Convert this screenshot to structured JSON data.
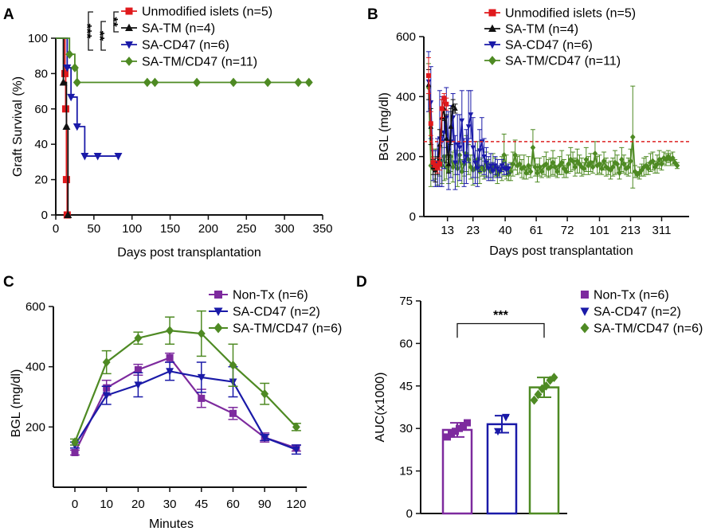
{
  "colors": {
    "red": "#e0191c",
    "black": "#111111",
    "blue": "#1a1aa8",
    "green": "#4e8a23",
    "purple": "#7d2a9e",
    "threshold": "#dd2222"
  },
  "chart_data": [
    {
      "panel": "A",
      "type": "line",
      "step": true,
      "ylabel": "Graft Survival (%)",
      "xlabel": "Days post transplantation",
      "xlim": [
        0,
        350
      ],
      "ylim": [
        0,
        100
      ],
      "xticks": [
        "0",
        "50",
        "100",
        "150",
        "200",
        "250",
        "300",
        "350"
      ],
      "yticks": [
        "0",
        "20",
        "40",
        "60",
        "80",
        "100"
      ],
      "series": [
        {
          "name": "Unmodified islets (n=5)",
          "color": "#e0191c",
          "marker": "square",
          "x": [
            0,
            12,
            13,
            14,
            15
          ],
          "y": [
            100,
            80,
            60,
            20,
            0
          ],
          "censored_x": [],
          "censored_y": []
        },
        {
          "name": "SA-TM (n=4)",
          "color": "#111111",
          "marker": "triangle-up",
          "x": [
            0,
            10,
            14,
            16
          ],
          "y": [
            100,
            75,
            50,
            0
          ],
          "censored_x": [],
          "censored_y": []
        },
        {
          "name": "SA-CD47 (n=6)",
          "color": "#1a1aa8",
          "marker": "triangle-down",
          "x": [
            0,
            15,
            20,
            28,
            38
          ],
          "y": [
            100,
            83.3,
            66.7,
            50,
            33.3
          ],
          "censored_x": [
            55,
            82
          ],
          "censored_y": [
            33.3,
            33.3
          ]
        },
        {
          "name": "SA-TM/CD47 (n=11)",
          "color": "#4e8a23",
          "marker": "diamond",
          "x": [
            0,
            18,
            25,
            28
          ],
          "y": [
            100,
            90.9,
            83.3,
            75
          ],
          "censored_x": [
            120,
            130,
            185,
            233,
            278,
            318,
            332
          ],
          "censored_y": [
            75,
            75,
            75,
            75,
            75,
            75,
            75
          ]
        }
      ],
      "significance": [
        "***",
        "**",
        "**"
      ]
    },
    {
      "panel": "B",
      "type": "line",
      "ylabel": "BGL (mg/dl)",
      "xlabel": "Days post transplantation",
      "ylim": [
        0,
        600
      ],
      "yticks": [
        "0",
        "200",
        "400",
        "600"
      ],
      "xticks": [
        "13",
        "23",
        "40",
        "61",
        "72",
        "101",
        "213",
        "311"
      ],
      "threshold": 250,
      "series": [
        {
          "name": "Unmodified islets (n=5)",
          "color": "#e0191c",
          "marker": "square",
          "x": [
            0,
            1,
            2,
            3,
            4,
            5,
            6,
            7,
            8
          ],
          "y": [
            470,
            310,
            180,
            170,
            165,
            175,
            360,
            395,
            375
          ],
          "err": [
            60,
            40,
            15,
            15,
            20,
            20,
            30,
            15,
            20
          ]
        },
        {
          "name": "SA-TM (n=4)",
          "color": "#111111",
          "marker": "triangle-up",
          "x": [
            0,
            1,
            2,
            3,
            4,
            5,
            6,
            7,
            8,
            9,
            10,
            11,
            12
          ],
          "y": [
            440,
            300,
            165,
            155,
            170,
            240,
            330,
            360,
            260,
            175,
            300,
            370,
            360
          ],
          "err": [
            50,
            60,
            25,
            40,
            30,
            50,
            60,
            40,
            80,
            30,
            60,
            20,
            15
          ]
        },
        {
          "name": "SA-CD47 (n=6)",
          "color": "#1a1aa8",
          "marker": "triangle-down",
          "x": [
            0,
            1,
            2,
            3,
            4,
            5,
            6,
            7,
            8,
            9,
            10,
            11,
            12,
            13,
            14,
            15,
            16,
            17,
            18,
            19,
            20,
            21,
            22,
            23,
            24,
            25,
            26,
            27,
            28,
            29,
            30,
            31,
            32,
            33,
            34,
            35,
            36
          ],
          "y": [
            450,
            380,
            170,
            160,
            180,
            260,
            250,
            280,
            330,
            220,
            250,
            330,
            180,
            240,
            230,
            320,
            180,
            200,
            300,
            340,
            230,
            180,
            160,
            220,
            250,
            200,
            180,
            160,
            170,
            150,
            170,
            160,
            150,
            170,
            160,
            155,
            160
          ],
          "err": [
            100,
            120,
            50,
            60,
            80,
            160,
            150,
            120,
            100,
            130,
            120,
            80,
            90,
            100,
            110,
            100,
            80,
            90,
            120,
            80,
            100,
            70,
            60,
            70,
            80,
            60,
            50,
            40,
            40,
            30,
            30,
            30,
            20,
            20,
            20,
            15,
            15
          ]
        },
        {
          "name": "SA-TM/CD47 (n=11)",
          "color": "#4e8a23",
          "marker": "diamond",
          "x": [
            0,
            1,
            2,
            3,
            4,
            5,
            6,
            7,
            8,
            9,
            10,
            11,
            12,
            13,
            14,
            15,
            16,
            17,
            18,
            19,
            20,
            21,
            22,
            23,
            24,
            25,
            26,
            27,
            28,
            29,
            30,
            31,
            32,
            33,
            34,
            35,
            36,
            37,
            38,
            39,
            40,
            41,
            42,
            43,
            44,
            45,
            46,
            47,
            48,
            49,
            50,
            51,
            52,
            53,
            54,
            55,
            56,
            57,
            58,
            59,
            60,
            61,
            62,
            63,
            64,
            65,
            66,
            67,
            68,
            69,
            70,
            71,
            72,
            73,
            74,
            75,
            76,
            77,
            78,
            79,
            80,
            81,
            82,
            83,
            84,
            85,
            86,
            87,
            88,
            89,
            90,
            91,
            92,
            93,
            94,
            95,
            96,
            97,
            98,
            99,
            100,
            101,
            102,
            103,
            104,
            105,
            106,
            107,
            108,
            109,
            110,
            111,
            112
          ],
          "y": [
            430,
            170,
            160,
            175,
            165,
            185,
            170,
            200,
            165,
            150,
            200,
            165,
            180,
            160,
            205,
            150,
            175,
            210,
            190,
            165,
            155,
            160,
            190,
            150,
            165,
            155,
            175,
            160,
            150,
            170,
            165,
            140,
            150,
            160,
            205,
            165,
            140,
            150,
            175,
            205,
            170,
            175,
            160,
            165,
            145,
            170,
            150,
            230,
            165,
            145,
            165,
            150,
            170,
            175,
            160,
            165,
            180,
            165,
            150,
            170,
            180,
            160,
            150,
            175,
            190,
            185,
            165,
            185,
            175,
            165,
            160,
            190,
            170,
            180,
            165,
            210,
            170,
            175,
            160,
            185,
            165,
            160,
            155,
            165,
            180,
            175,
            145,
            190,
            175,
            160,
            165,
            185,
            265,
            150,
            140,
            145,
            155,
            165,
            170,
            160,
            180,
            185,
            165,
            175,
            190,
            175,
            195,
            190,
            200,
            190,
            195,
            180,
            170
          ],
          "err": [
            80,
            70,
            40,
            50,
            60,
            50,
            60,
            80,
            40,
            40,
            50,
            50,
            40,
            60,
            40,
            40,
            40,
            60,
            50,
            40,
            50,
            30,
            60,
            40,
            30,
            30,
            40,
            30,
            30,
            40,
            30,
            30,
            20,
            40,
            70,
            40,
            20,
            30,
            40,
            50,
            30,
            30,
            30,
            40,
            20,
            30,
            20,
            60,
            30,
            30,
            30,
            20,
            30,
            40,
            30,
            30,
            40,
            30,
            20,
            30,
            40,
            30,
            20,
            30,
            40,
            30,
            30,
            40,
            30,
            30,
            20,
            40,
            30,
            30,
            20,
            40,
            30,
            30,
            20,
            30,
            30,
            20,
            30,
            30,
            40,
            30,
            20,
            40,
            30,
            20,
            30,
            40,
            170,
            20,
            10,
            20,
            20,
            30,
            30,
            20,
            30,
            30,
            20,
            30,
            30,
            20,
            20,
            20,
            20,
            20,
            20,
            10,
            10
          ]
        }
      ]
    },
    {
      "panel": "C",
      "type": "line",
      "ylabel": "BGL (mg/dl)",
      "xlabel": "Minutes",
      "categories": [
        "0",
        "10",
        "20",
        "30",
        "45",
        "60",
        "90",
        "120"
      ],
      "ylim": [
        0,
        600
      ],
      "yticks": [
        "200",
        "400",
        "600"
      ],
      "series": [
        {
          "name": "Non-Tx (n=6)",
          "color": "#7d2a9e",
          "marker": "square",
          "values": [
            115,
            330,
            390,
            430,
            295,
            245,
            165,
            130
          ],
          "err": [
            8,
            25,
            18,
            15,
            30,
            20,
            15,
            10
          ]
        },
        {
          "name": "SA-CD47 (n=2)",
          "color": "#1a1aa8",
          "marker": "triangle-down",
          "values": [
            140,
            305,
            340,
            385,
            365,
            350,
            165,
            125
          ],
          "err": [
            10,
            30,
            40,
            30,
            50,
            50,
            10,
            15
          ]
        },
        {
          "name": "SA-TM/CD47 (n=6)",
          "color": "#4e8a23",
          "marker": "diamond",
          "values": [
            150,
            415,
            495,
            520,
            510,
            405,
            310,
            200
          ],
          "err": [
            10,
            38,
            20,
            45,
            75,
            70,
            35,
            12
          ]
        }
      ]
    },
    {
      "panel": "D",
      "type": "bar",
      "ylabel": "AUC(x1000)",
      "ylim": [
        0,
        75
      ],
      "yticks": [
        "0",
        "15",
        "30",
        "45",
        "60",
        "75"
      ],
      "categories": [
        "Non-Tx (n=6)",
        "SA-CD47 (n=2)",
        "SA-TM/CD47 (n=6)"
      ],
      "values": [
        29.5,
        31.5,
        44.5
      ],
      "err": [
        2.5,
        3.0,
        3.5
      ],
      "colors": [
        "#7d2a9e",
        "#1a1aa8",
        "#4e8a23"
      ],
      "markers": [
        "square",
        "triangle-down",
        "diamond"
      ],
      "points": [
        [
          27,
          28,
          29,
          30,
          31,
          32
        ],
        [
          29,
          34
        ],
        [
          40,
          42,
          44,
          45,
          47,
          48
        ]
      ],
      "significance": "***"
    }
  ],
  "panels": [
    "A",
    "B",
    "C",
    "D"
  ]
}
